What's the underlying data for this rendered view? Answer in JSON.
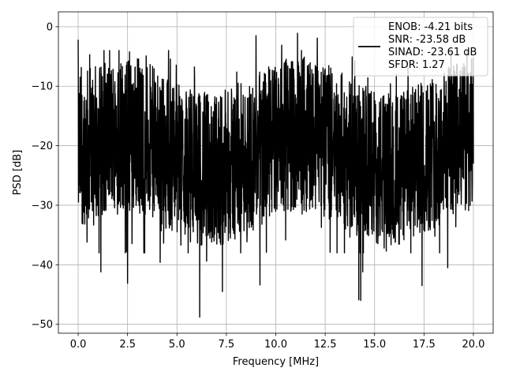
{
  "chart_data": {
    "type": "line",
    "xlabel": "Frequency [MHz]",
    "ylabel": "PSD [dB]",
    "xlim": [
      -1.0,
      21.0
    ],
    "ylim": [
      -51.5,
      2.5
    ],
    "xticks": [
      0.0,
      2.5,
      5.0,
      7.5,
      10.0,
      12.5,
      15.0,
      17.5,
      20.0
    ],
    "xtick_labels": [
      "0.0",
      "2.5",
      "5.0",
      "7.5",
      "10.0",
      "12.5",
      "15.0",
      "17.5",
      "20.0"
    ],
    "yticks": [
      0,
      -10,
      -20,
      -30,
      -40,
      -50
    ],
    "ytick_labels": [
      "0",
      "−10",
      "−20",
      "−30",
      "−40",
      "−50"
    ],
    "grid": true,
    "legend_position": "top-right",
    "line_color": "#000000",
    "series": [
      {
        "name": "ENOB: -4.21 bits\nSNR: -23.58 dB\nSINAD: -23.61 dB\nSFDR: 1.27",
        "legend_lines": [
          "ENOB: -4.21 bits",
          "SNR: -23.58 dB",
          "SINAD: -23.61 dB",
          "SFDR: 1.27"
        ],
        "x_range": [
          0.0,
          20.0
        ],
        "noise_band_dB": [
          -35,
          -6
        ],
        "peaks": [
          {
            "x": 0.0,
            "y": -2.2
          },
          {
            "x": 0.45,
            "y": -36.2
          },
          {
            "x": 1.15,
            "y": -41.2
          },
          {
            "x": 2.5,
            "y": -43.1
          },
          {
            "x": 2.45,
            "y": -37.8
          },
          {
            "x": 3.0,
            "y": -5.4
          },
          {
            "x": 4.2,
            "y": -34.3
          },
          {
            "x": 4.15,
            "y": -39.6
          },
          {
            "x": 6.15,
            "y": -48.8
          },
          {
            "x": 6.5,
            "y": -39.4
          },
          {
            "x": 7.3,
            "y": -44.5
          },
          {
            "x": 9.0,
            "y": -1.5
          },
          {
            "x": 9.2,
            "y": -43.4
          },
          {
            "x": 10.3,
            "y": -3.1
          },
          {
            "x": 11.1,
            "y": -1.1
          },
          {
            "x": 12.1,
            "y": -1.9
          },
          {
            "x": 12.75,
            "y": -37.9
          },
          {
            "x": 14.2,
            "y": -45.9
          },
          {
            "x": 14.3,
            "y": -46.0
          },
          {
            "x": 14.4,
            "y": -41.2
          },
          {
            "x": 17.4,
            "y": -43.5
          },
          {
            "x": 18.7,
            "y": -40.5
          }
        ]
      }
    ]
  }
}
